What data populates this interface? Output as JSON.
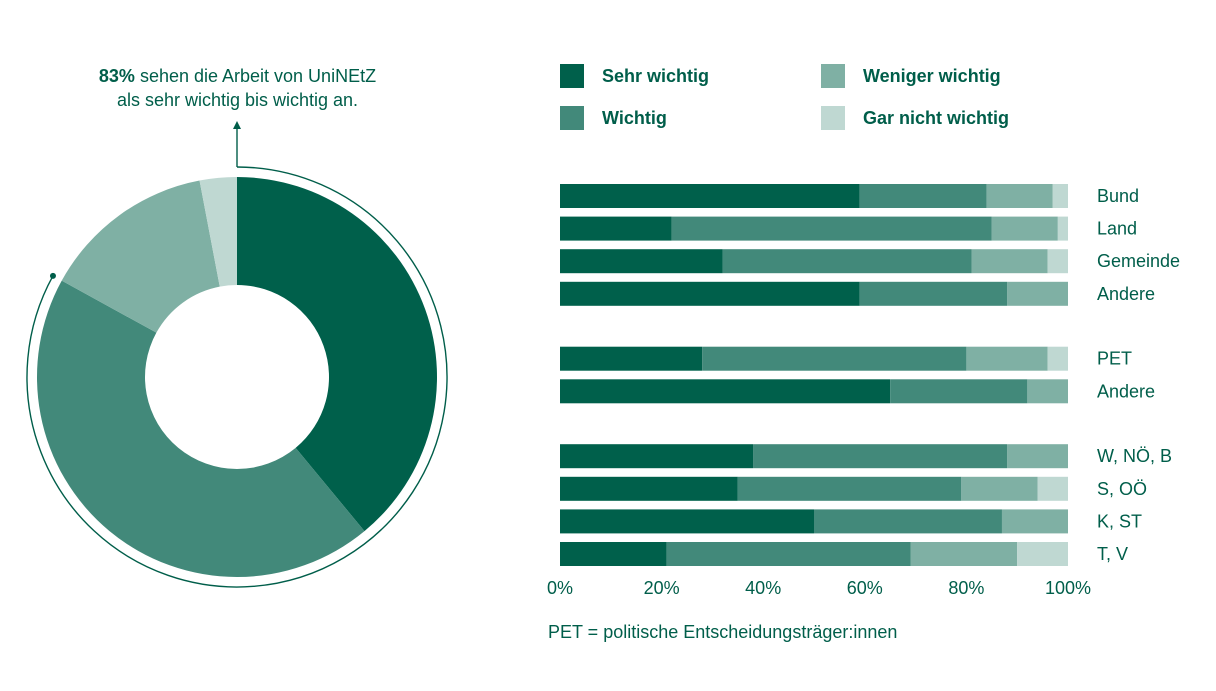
{
  "colors": {
    "sehr_wichtig": "#00604b",
    "wichtig": "#42897a",
    "weniger_wichtig": "#7fb0a4",
    "gar_nicht_wichtig": "#bfd8d2",
    "text": "#005e4a"
  },
  "callout": {
    "highlight": "83%",
    "line1_rest": " sehen die Arbeit von UniNEtZ",
    "line2": "als sehr wichtig bis wichtig an."
  },
  "footnote": "PET = politische Entscheidungsträger:innen",
  "chart_data": [
    {
      "type": "pie",
      "variant": "donut",
      "labels": [
        "Sehr wichtig",
        "Wichtig",
        "Weniger wichtig",
        "Gar nicht wichtig"
      ],
      "values": [
        39,
        44,
        14,
        3
      ]
    },
    {
      "type": "bar",
      "orientation": "horizontal",
      "stacked": true,
      "legend_position": "top",
      "categories": [
        "Bund",
        "Land",
        "Gemeinde",
        "Andere",
        "PET",
        "Andere",
        "W, NÖ, B",
        "S, OÖ",
        "K, ST",
        "T, V"
      ],
      "groups": [
        [
          0,
          1,
          2,
          3
        ],
        [
          4,
          5
        ],
        [
          6,
          7,
          8,
          9
        ]
      ],
      "series": [
        {
          "name": "Sehr wichtig",
          "values": [
            59,
            22,
            32,
            59,
            28,
            65,
            38,
            35,
            50,
            21
          ]
        },
        {
          "name": "Wichtig",
          "values": [
            25,
            63,
            49,
            29,
            52,
            27,
            50,
            44,
            37,
            48
          ]
        },
        {
          "name": "Weniger wichtig",
          "values": [
            13,
            13,
            15,
            12,
            16,
            8,
            12,
            15,
            13,
            21
          ]
        },
        {
          "name": "Gar nicht wichtig",
          "values": [
            3,
            2,
            4,
            0,
            4,
            0,
            0,
            6,
            0,
            10
          ]
        }
      ],
      "xlim": [
        0,
        100
      ],
      "xticks": [
        "0%",
        "20%",
        "40%",
        "60%",
        "80%",
        "100%"
      ]
    }
  ]
}
